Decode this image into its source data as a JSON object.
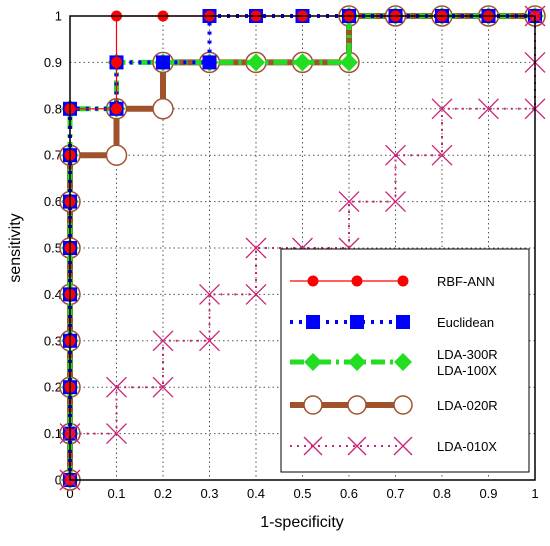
{
  "chart_data": {
    "type": "line",
    "xlabel": "1-specificity",
    "ylabel": "sensitivity",
    "xlim": [
      0,
      1
    ],
    "ylim": [
      0,
      1
    ],
    "x_ticks": [
      "0",
      "0.1",
      "0.2",
      "0.3",
      "0.4",
      "0.5",
      "0.6",
      "0.7",
      "0.8",
      "0.9",
      "1"
    ],
    "y_ticks": [
      "0",
      "0.1",
      "0.2",
      "0.3",
      "0.4",
      "0.5",
      "0.6",
      "0.7",
      "0.8",
      "0.9",
      "1"
    ],
    "grid": true,
    "legend_position": "bottom-right",
    "series": [
      {
        "name": "RBF-ANN",
        "color": "#ff0000",
        "line_style": "solid",
        "marker": "circle",
        "points": [
          [
            0,
            0
          ],
          [
            0,
            0.1
          ],
          [
            0,
            0.2
          ],
          [
            0,
            0.3
          ],
          [
            0,
            0.4
          ],
          [
            0,
            0.5
          ],
          [
            0,
            0.6
          ],
          [
            0,
            0.7
          ],
          [
            0,
            0.8
          ],
          [
            0.1,
            0.8
          ],
          [
            0.1,
            0.9
          ],
          [
            0.1,
            1
          ],
          [
            0.2,
            1
          ],
          [
            0.3,
            1
          ],
          [
            0.4,
            1
          ],
          [
            0.5,
            1
          ],
          [
            0.6,
            1
          ],
          [
            0.7,
            1
          ],
          [
            0.8,
            1
          ],
          [
            0.9,
            1
          ],
          [
            1,
            1
          ]
        ]
      },
      {
        "name": "Euclidean",
        "color": "#0000ff",
        "line_style": "dotted",
        "marker": "square",
        "points": [
          [
            0,
            0
          ],
          [
            0,
            0.1
          ],
          [
            0,
            0.2
          ],
          [
            0,
            0.3
          ],
          [
            0,
            0.4
          ],
          [
            0,
            0.5
          ],
          [
            0,
            0.6
          ],
          [
            0,
            0.7
          ],
          [
            0,
            0.8
          ],
          [
            0.1,
            0.8
          ],
          [
            0.1,
            0.9
          ],
          [
            0.2,
            0.9
          ],
          [
            0.3,
            0.9
          ],
          [
            0.3,
            1
          ],
          [
            0.4,
            1
          ],
          [
            0.5,
            1
          ],
          [
            0.6,
            1
          ],
          [
            0.7,
            1
          ],
          [
            0.8,
            1
          ],
          [
            0.9,
            1
          ],
          [
            1,
            1
          ]
        ]
      },
      {
        "name": "LDA-300R\nLDA-100X",
        "color": "#22dd22",
        "line_style": "dashdot",
        "marker": "diamond",
        "points": [
          [
            0,
            0
          ],
          [
            0,
            0.1
          ],
          [
            0,
            0.2
          ],
          [
            0,
            0.3
          ],
          [
            0,
            0.4
          ],
          [
            0,
            0.5
          ],
          [
            0,
            0.6
          ],
          [
            0,
            0.7
          ],
          [
            0,
            0.8
          ],
          [
            0.1,
            0.8
          ],
          [
            0.1,
            0.9
          ],
          [
            0.2,
            0.9
          ],
          [
            0.3,
            0.9
          ],
          [
            0.4,
            0.9
          ],
          [
            0.5,
            0.9
          ],
          [
            0.6,
            0.9
          ],
          [
            0.6,
            1
          ],
          [
            0.7,
            1
          ],
          [
            0.8,
            1
          ],
          [
            0.9,
            1
          ],
          [
            1,
            1
          ]
        ]
      },
      {
        "name": "LDA-020R",
        "color": "#a0522d",
        "line_style": "solid",
        "marker": "open-circle",
        "points": [
          [
            0,
            0
          ],
          [
            0,
            0.1
          ],
          [
            0,
            0.2
          ],
          [
            0,
            0.3
          ],
          [
            0,
            0.4
          ],
          [
            0,
            0.5
          ],
          [
            0,
            0.6
          ],
          [
            0,
            0.7
          ],
          [
            0.1,
            0.7
          ],
          [
            0.1,
            0.8
          ],
          [
            0.2,
            0.8
          ],
          [
            0.2,
            0.9
          ],
          [
            0.3,
            0.9
          ],
          [
            0.4,
            0.9
          ],
          [
            0.5,
            0.9
          ],
          [
            0.6,
            0.9
          ],
          [
            0.6,
            1
          ],
          [
            0.7,
            1
          ],
          [
            0.8,
            1
          ],
          [
            0.9,
            1
          ],
          [
            1,
            1
          ]
        ]
      },
      {
        "name": "LDA-010X",
        "color": "#cc2277",
        "line_style": "dotted",
        "marker": "x",
        "points": [
          [
            0,
            0
          ],
          [
            0,
            0.1
          ],
          [
            0.1,
            0.1
          ],
          [
            0.1,
            0.2
          ],
          [
            0.2,
            0.2
          ],
          [
            0.2,
            0.3
          ],
          [
            0.3,
            0.3
          ],
          [
            0.3,
            0.4
          ],
          [
            0.4,
            0.4
          ],
          [
            0.4,
            0.5
          ],
          [
            0.5,
            0.5
          ],
          [
            0.6,
            0.5
          ],
          [
            0.6,
            0.6
          ],
          [
            0.7,
            0.6
          ],
          [
            0.7,
            0.7
          ],
          [
            0.8,
            0.7
          ],
          [
            0.8,
            0.8
          ],
          [
            0.9,
            0.8
          ],
          [
            1,
            0.8
          ],
          [
            1,
            0.9
          ],
          [
            1,
            1
          ]
        ]
      }
    ]
  }
}
